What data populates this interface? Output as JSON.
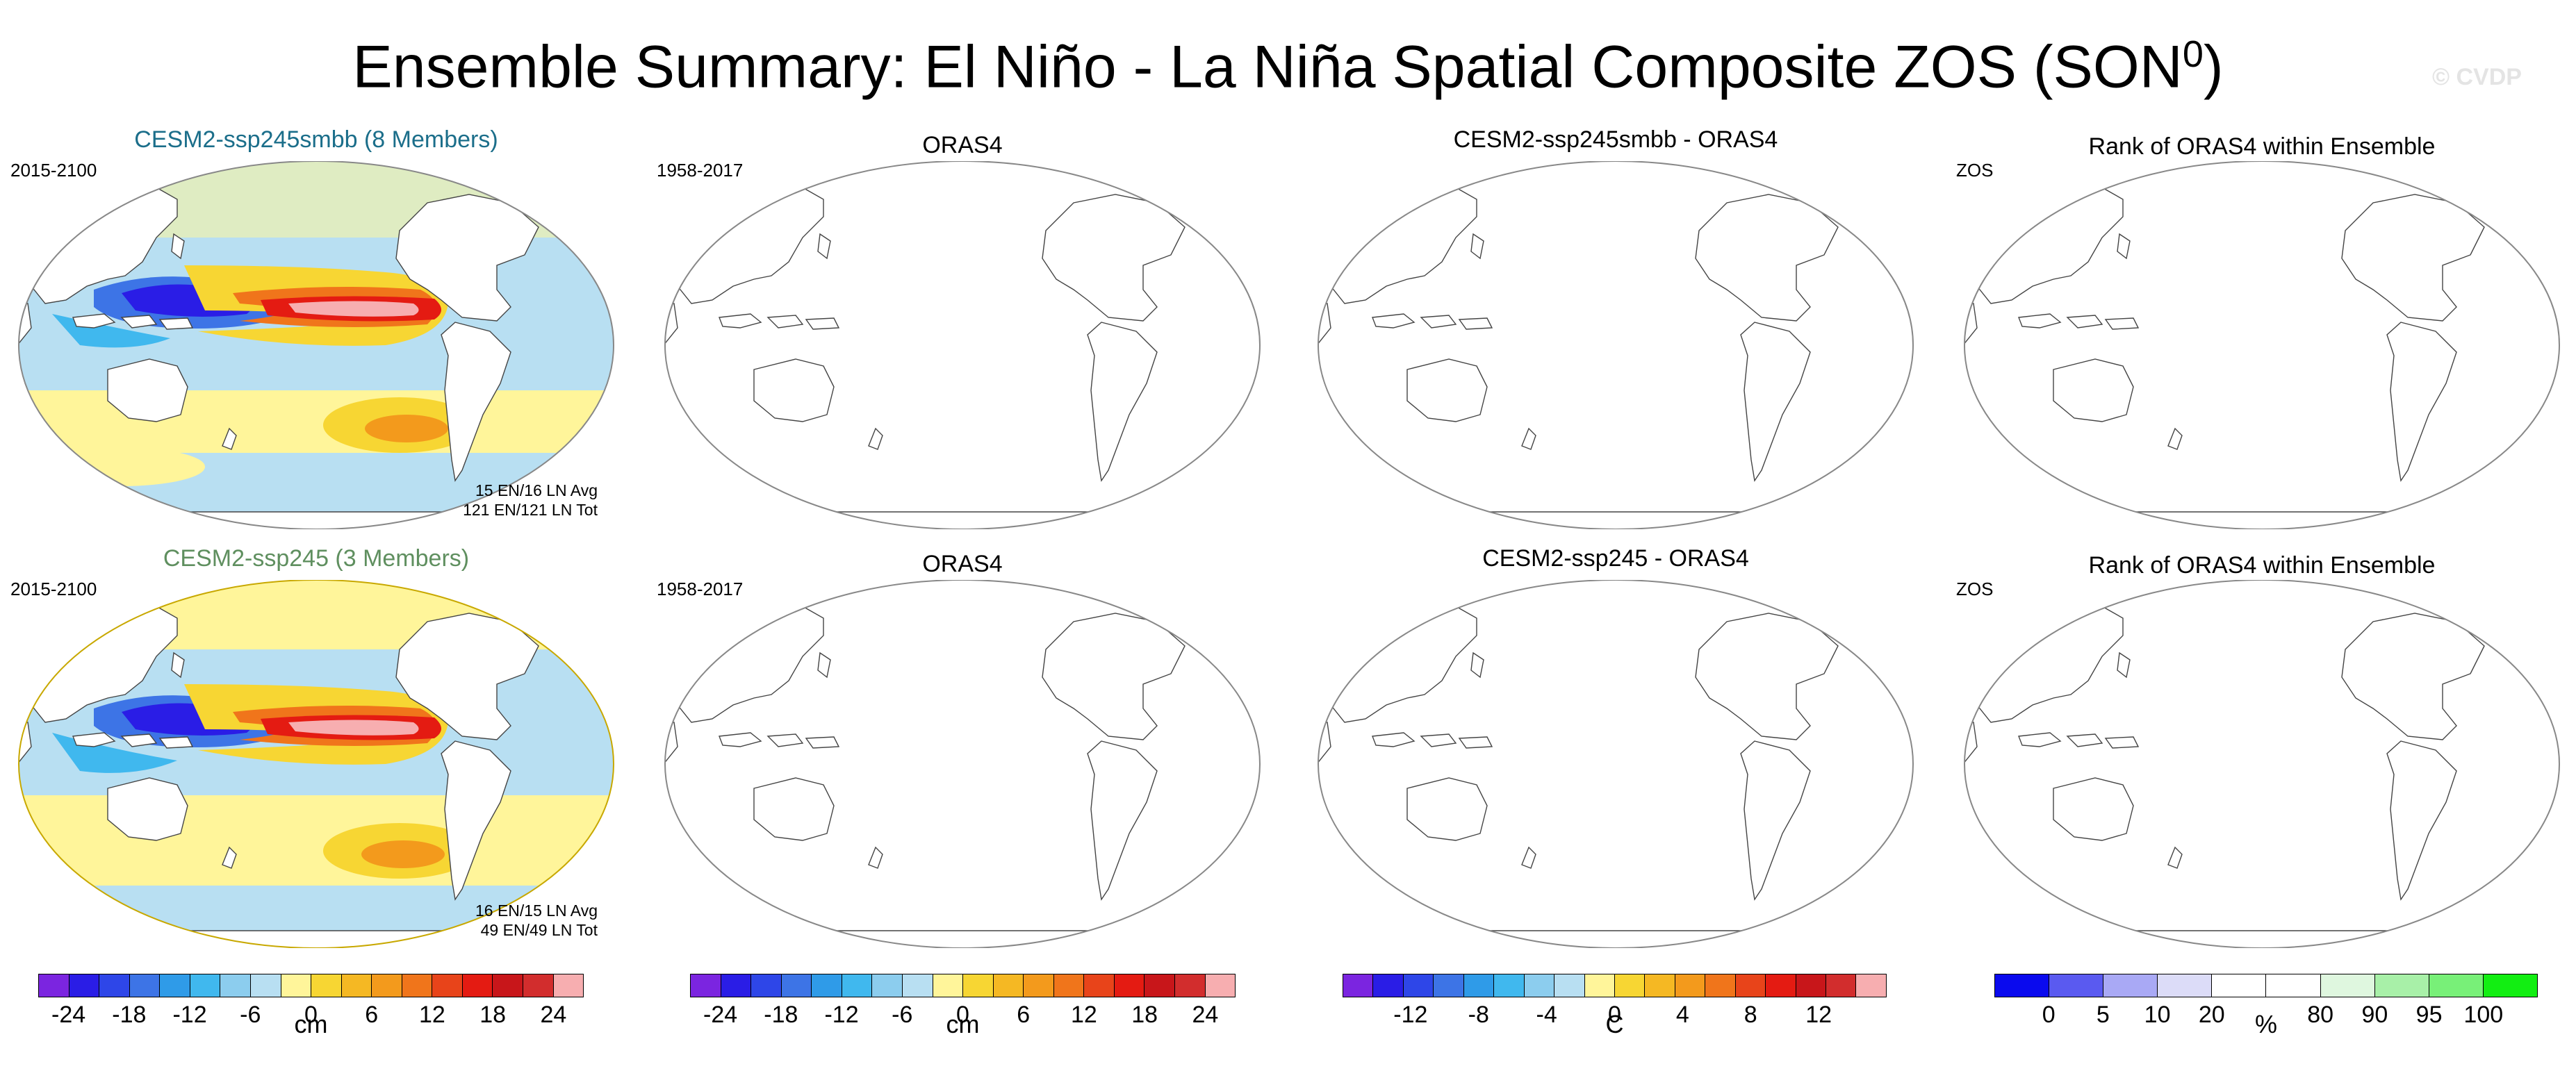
{
  "title": {
    "text": "Ensemble Summary: El Niño - La Niña Spatial Composite ZOS (SON",
    "sup": "0",
    "close": ")"
  },
  "watermark": "© CVDP",
  "colors": {
    "row1_title": "#1b6e8a",
    "row2_title": "#5f8f5f"
  },
  "rows": [
    {
      "model": {
        "title": "CESM2-ssp245smbb (8 Members)",
        "period": "2015-2100",
        "avg": "15 EN/16 LN Avg",
        "tot": "121 EN/121 LN Tot"
      },
      "obs": {
        "title": "ORAS4",
        "period": "1958-2017"
      },
      "diff": {
        "title": "CESM2-ssp245smbb - ORAS4"
      },
      "rank": {
        "title": "Rank of ORAS4 within Ensemble",
        "label": "ZOS"
      }
    },
    {
      "model": {
        "title": "CESM2-ssp245 (3 Members)",
        "period": "2015-2100",
        "avg": "16 EN/15 LN Avg",
        "tot": "49 EN/49 LN Tot"
      },
      "obs": {
        "title": "ORAS4",
        "period": "1958-2017"
      },
      "diff": {
        "title": "CESM2-ssp245 - ORAS4"
      },
      "rank": {
        "title": "Rank of ORAS4 within Ensemble",
        "label": "ZOS"
      }
    }
  ],
  "colorbars": [
    {
      "unit": "cm",
      "colors": [
        "#7b25e0",
        "#2a1de6",
        "#2e46e8",
        "#3d74e6",
        "#2f9be8",
        "#40b8ee",
        "#8ccdee",
        "#b8dff2",
        "#fff59a",
        "#f7d633",
        "#f5b823",
        "#f39a1c",
        "#f0751b",
        "#e8441a",
        "#e41b12",
        "#c8161a",
        "#d22d2d",
        "#f7aeb0"
      ],
      "ticks": [
        "-24",
        "-18",
        "-12",
        "-6",
        "0",
        "6",
        "12",
        "18",
        "24"
      ]
    },
    {
      "unit": "cm",
      "colors": [
        "#7b25e0",
        "#2a1de6",
        "#2e46e8",
        "#3d74e6",
        "#2f9be8",
        "#40b8ee",
        "#8ccdee",
        "#b8dff2",
        "#fff59a",
        "#f7d633",
        "#f5b823",
        "#f39a1c",
        "#f0751b",
        "#e8441a",
        "#e41b12",
        "#c8161a",
        "#d22d2d",
        "#f7aeb0"
      ],
      "ticks": [
        "-24",
        "-18",
        "-12",
        "-6",
        "0",
        "6",
        "12",
        "18",
        "24"
      ]
    },
    {
      "unit": "C",
      "colors": [
        "#7b25e0",
        "#2a1de6",
        "#2e46e8",
        "#3d74e6",
        "#2f9be8",
        "#40b8ee",
        "#8ccdee",
        "#b8dff2",
        "#fff59a",
        "#f7d633",
        "#f5b823",
        "#f39a1c",
        "#f0751b",
        "#e8441a",
        "#e41b12",
        "#c8161a",
        "#d22d2d",
        "#f7aeb0"
      ],
      "ticks": [
        "-12",
        "-8",
        "-4",
        "0",
        "4",
        "8",
        "12"
      ]
    },
    {
      "unit": "%",
      "colors": [
        "#0a0aee",
        "#5a5af0",
        "#a9a9f5",
        "#dcdcf8",
        "#ffffff",
        "#ffffff",
        "#dff7df",
        "#a8f0a8",
        "#78f078",
        "#12ee12"
      ],
      "ticks": [
        "0",
        "5",
        "10",
        "20",
        "80",
        "90",
        "95",
        "100"
      ]
    }
  ]
}
